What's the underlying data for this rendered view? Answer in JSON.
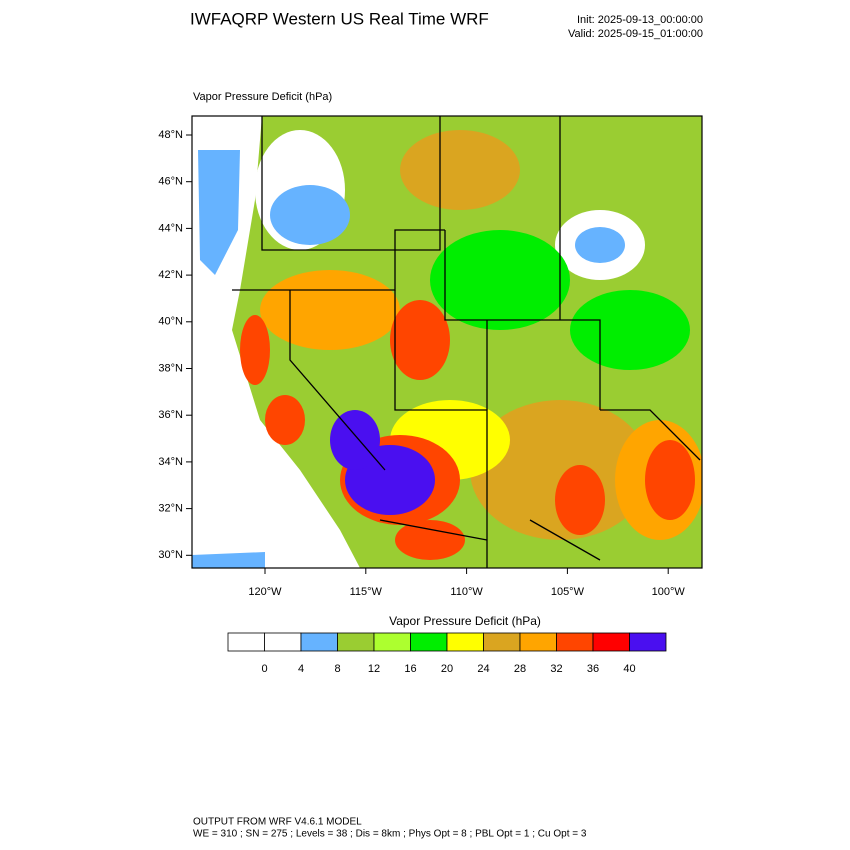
{
  "header": {
    "title": "IWFAQRP Western US Real Time WRF",
    "init": "Init: 2025-09-13_00:00:00",
    "valid": "Valid: 2025-09-15_01:00:00"
  },
  "map": {
    "label": "Vapor Pressure Deficit   (hPa)",
    "lat_ticks": [
      "48°N",
      "46°N",
      "44°N",
      "42°N",
      "40°N",
      "38°N",
      "36°N",
      "34°N",
      "32°N",
      "30°N"
    ],
    "lon_ticks": [
      "120°W",
      "115°W",
      "110°W",
      "105°W",
      "100°W"
    ]
  },
  "colorbar": {
    "title": "Vapor Pressure Deficit  (hPa)",
    "colors": [
      "#ffffff",
      "#ffffff",
      "#66b3ff",
      "#9acd32",
      "#adff2f",
      "#00ee00",
      "#ffff00",
      "#daa520",
      "#ffa500",
      "#ff4500",
      "#ff0000",
      "#4a0ff0"
    ],
    "labels": [
      "0",
      "4",
      "8",
      "12",
      "16",
      "20",
      "24",
      "28",
      "32",
      "36",
      "40"
    ]
  },
  "footer": {
    "line1": "OUTPUT FROM WRF V4.6.1 MODEL",
    "line2": "WE = 310 ; SN = 275 ; Levels = 38 ; Dis = 8km ; Phys Opt = 8 ; PBL Opt = 1 ; Cu Opt = 3"
  }
}
